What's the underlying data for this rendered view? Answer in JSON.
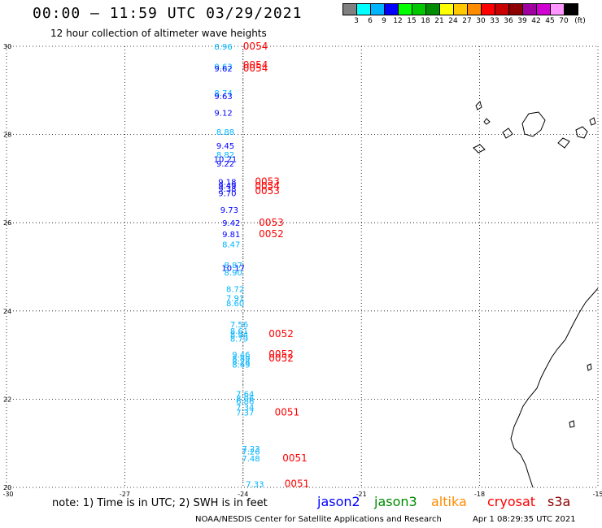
{
  "header": {
    "title": "00:00 – 11:59 UTC 03/29/2021",
    "subtitle": "12 hour collection of altimeter wave heights"
  },
  "legend_scale": {
    "labels": [
      "3",
      "6",
      "9",
      "12",
      "15",
      "18",
      "21",
      "24",
      "27",
      "30",
      "33",
      "36",
      "39",
      "42",
      "45",
      "70"
    ],
    "unit": "(ft)",
    "colors": [
      "#808080",
      "#00ffff",
      "#00b4ff",
      "#0000ff",
      "#00ff00",
      "#00c800",
      "#008c00",
      "#ffff00",
      "#ffc800",
      "#ff8c00",
      "#ff0000",
      "#c80000",
      "#8c0000",
      "#a000a0",
      "#d000d0",
      "#ff96ff",
      "#000000"
    ]
  },
  "axes": {
    "lon_labels": [
      "-30",
      "-27",
      "-24",
      "-21",
      "-18",
      "-15"
    ],
    "lat_labels": [
      "30",
      "28",
      "26",
      "24",
      "22",
      "20"
    ],
    "lon_values": [
      -30,
      -27,
      -24,
      -21,
      -18,
      -15
    ],
    "lat_values": [
      30,
      28,
      26,
      24,
      22,
      20
    ]
  },
  "wave_labels": [
    {
      "v": "8.96",
      "lat": 30.0,
      "lon": -24.5,
      "c": "#00b4ff"
    },
    {
      "v": "9.63",
      "lat": 29.55,
      "lon": -24.5,
      "c": "#00b4ff"
    },
    {
      "v": "9.62",
      "lat": 29.5,
      "lon": -24.5,
      "c": "#0000ff"
    },
    {
      "v": "8.74",
      "lat": 28.95,
      "lon": -24.5,
      "c": "#00b4ff"
    },
    {
      "v": "9.63",
      "lat": 28.88,
      "lon": -24.5,
      "c": "#0000ff"
    },
    {
      "v": "9.12",
      "lat": 28.5,
      "lon": -24.5,
      "c": "#0000ff"
    },
    {
      "v": "8.88",
      "lat": 28.07,
      "lon": -24.45,
      "c": "#00b4ff"
    },
    {
      "v": "9.45",
      "lat": 27.75,
      "lon": -24.45,
      "c": "#0000ff"
    },
    {
      "v": "8.82",
      "lat": 27.55,
      "lon": -24.45,
      "c": "#00b4ff"
    },
    {
      "v": "10.21",
      "lat": 27.45,
      "lon": -24.45,
      "c": "#0000ff"
    },
    {
      "v": "9.22",
      "lat": 27.35,
      "lon": -24.45,
      "c": "#0000ff"
    },
    {
      "v": "9.18",
      "lat": 26.93,
      "lon": -24.4,
      "c": "#0000ff"
    },
    {
      "v": "9.49",
      "lat": 26.85,
      "lon": -24.4,
      "c": "#0000ff"
    },
    {
      "v": "9.38",
      "lat": 26.78,
      "lon": -24.4,
      "c": "#0000ff"
    },
    {
      "v": "9.70",
      "lat": 26.68,
      "lon": -24.4,
      "c": "#0000ff"
    },
    {
      "v": "9.73",
      "lat": 26.3,
      "lon": -24.35,
      "c": "#0000ff"
    },
    {
      "v": "9.42",
      "lat": 26.0,
      "lon": -24.3,
      "c": "#0000ff"
    },
    {
      "v": "9.81",
      "lat": 25.75,
      "lon": -24.3,
      "c": "#0000ff"
    },
    {
      "v": "8.47",
      "lat": 25.52,
      "lon": -24.3,
      "c": "#00b4ff"
    },
    {
      "v": "8.87",
      "lat": 25.05,
      "lon": -24.25,
      "c": "#00b4ff"
    },
    {
      "v": "10.17",
      "lat": 24.98,
      "lon": -24.25,
      "c": "#0000ff"
    },
    {
      "v": "8.90",
      "lat": 24.88,
      "lon": -24.25,
      "c": "#00b4ff"
    },
    {
      "v": "8.72",
      "lat": 24.5,
      "lon": -24.2,
      "c": "#00b4ff"
    },
    {
      "v": "7.91",
      "lat": 24.3,
      "lon": -24.2,
      "c": "#00b4ff"
    },
    {
      "v": "8.60",
      "lat": 24.18,
      "lon": -24.2,
      "c": "#00b4ff"
    },
    {
      "v": "7.56",
      "lat": 23.7,
      "lon": -24.1,
      "c": "#00b4ff"
    },
    {
      "v": "8.61",
      "lat": 23.55,
      "lon": -24.1,
      "c": "#00b4ff"
    },
    {
      "v": "8.94",
      "lat": 23.47,
      "lon": -24.1,
      "c": "#00b4ff"
    },
    {
      "v": "8.79",
      "lat": 23.38,
      "lon": -24.1,
      "c": "#00b4ff"
    },
    {
      "v": "9.46",
      "lat": 23.02,
      "lon": -24.05,
      "c": "#00b4ff"
    },
    {
      "v": "8.89",
      "lat": 22.93,
      "lon": -24.05,
      "c": "#00b4ff"
    },
    {
      "v": "8.28",
      "lat": 22.86,
      "lon": -24.05,
      "c": "#00b4ff"
    },
    {
      "v": "8.69",
      "lat": 22.79,
      "lon": -24.05,
      "c": "#00b4ff"
    },
    {
      "v": "7.64",
      "lat": 22.13,
      "lon": -23.95,
      "c": "#00b4ff"
    },
    {
      "v": "8.06",
      "lat": 22.03,
      "lon": -23.95,
      "c": "#00b4ff"
    },
    {
      "v": "6.86",
      "lat": 21.96,
      "lon": -23.95,
      "c": "#00b4ff"
    },
    {
      "v": "7.34",
      "lat": 21.82,
      "lon": -23.95,
      "c": "#00b4ff"
    },
    {
      "v": "7.37",
      "lat": 21.7,
      "lon": -23.95,
      "c": "#00b4ff"
    },
    {
      "v": "7.23",
      "lat": 20.88,
      "lon": -23.8,
      "c": "#00b4ff"
    },
    {
      "v": "7.26",
      "lat": 20.82,
      "lon": -23.8,
      "c": "#00b4ff"
    },
    {
      "v": "7.48",
      "lat": 20.66,
      "lon": -23.8,
      "c": "#00b4ff"
    },
    {
      "v": "7.33",
      "lat": 20.08,
      "lon": -23.7,
      "c": "#00b4ff"
    }
  ],
  "time_labels": [
    {
      "v": "0054",
      "lat": 30.0,
      "lon": -24.0,
      "c": "#ff0000"
    },
    {
      "v": "0054",
      "lat": 29.58,
      "lon": -24.0,
      "c": "#ff0000"
    },
    {
      "v": "0054",
      "lat": 29.5,
      "lon": -24.0,
      "c": "#ff0000"
    },
    {
      "v": "0053",
      "lat": 26.93,
      "lon": -23.7,
      "c": "#ff0000"
    },
    {
      "v": "0054",
      "lat": 26.83,
      "lon": -23.7,
      "c": "#ff0000"
    },
    {
      "v": "0053",
      "lat": 26.72,
      "lon": -23.7,
      "c": "#ff0000"
    },
    {
      "v": "0053",
      "lat": 26.0,
      "lon": -23.6,
      "c": "#ff0000"
    },
    {
      "v": "0052",
      "lat": 25.75,
      "lon": -23.6,
      "c": "#ff0000"
    },
    {
      "v": "0052",
      "lat": 23.48,
      "lon": -23.35,
      "c": "#ff0000"
    },
    {
      "v": "0052",
      "lat": 23.02,
      "lon": -23.35,
      "c": "#ff0000"
    },
    {
      "v": "0052",
      "lat": 22.93,
      "lon": -23.35,
      "c": "#ff0000"
    },
    {
      "v": "0051",
      "lat": 21.7,
      "lon": -23.2,
      "c": "#ff0000"
    },
    {
      "v": "0051",
      "lat": 20.66,
      "lon": -23.0,
      "c": "#ff0000"
    },
    {
      "v": "0051",
      "lat": 20.08,
      "lon": -22.95,
      "c": "#ff0000"
    }
  ],
  "footer": {
    "note": "note: 1) Time is in UTC; 2) SWH is in feet",
    "satellites": [
      {
        "name": "jason2",
        "color": "#0000ff"
      },
      {
        "name": "jason3",
        "color": "#008c00"
      },
      {
        "name": "altika",
        "color": "#ff8c00"
      },
      {
        "name": "cryosat",
        "color": "#ff0000"
      },
      {
        "name": "s3a",
        "color": "#8c0000"
      }
    ],
    "credit": "NOAA/NESDIS Center for Satellite Applications and Research",
    "timestamp": "Apr  1 08:29:35 UTC 2021"
  }
}
